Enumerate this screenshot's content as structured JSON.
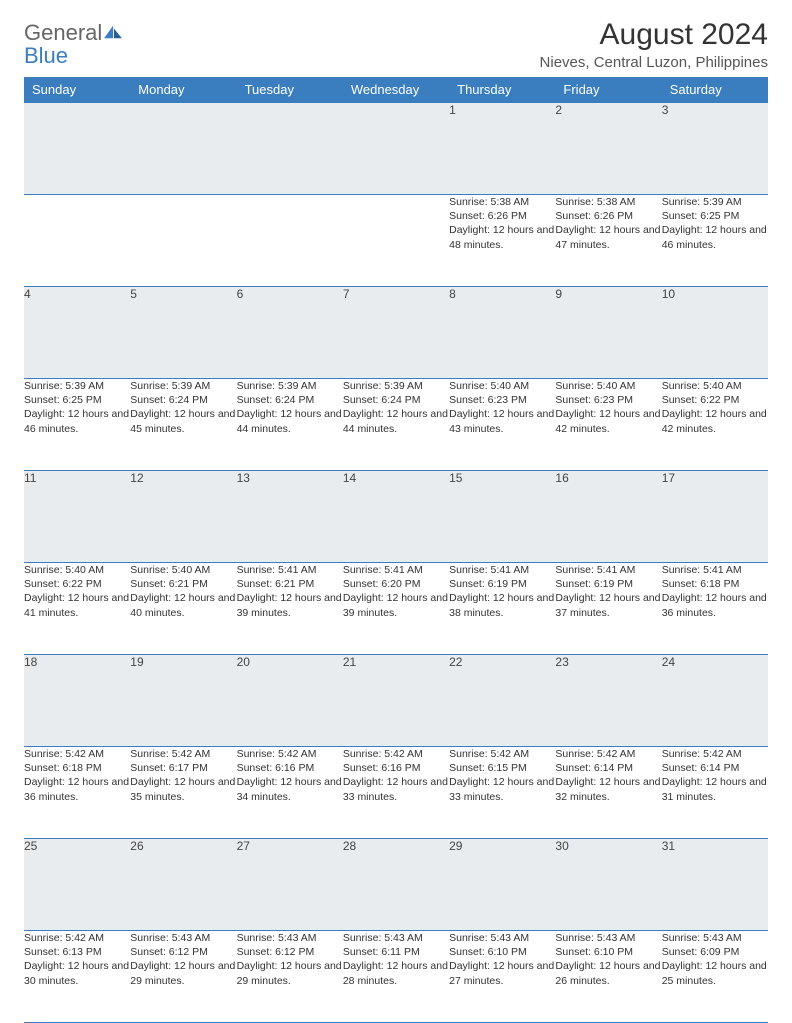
{
  "brand": {
    "part1": "General",
    "part2": "Blue"
  },
  "title": "August 2024",
  "location": "Nieves, Central Luzon, Philippines",
  "colors": {
    "accent": "#3a7ebf",
    "daynum_bg": "#e9ecef",
    "text": "#333333"
  },
  "weekdays": [
    "Sunday",
    "Monday",
    "Tuesday",
    "Wednesday",
    "Thursday",
    "Friday",
    "Saturday"
  ],
  "weeks": [
    [
      null,
      null,
      null,
      null,
      {
        "day": "1",
        "sunrise": "5:38 AM",
        "sunset": "6:26 PM",
        "daylight": "12 hours and 48 minutes."
      },
      {
        "day": "2",
        "sunrise": "5:38 AM",
        "sunset": "6:26 PM",
        "daylight": "12 hours and 47 minutes."
      },
      {
        "day": "3",
        "sunrise": "5:39 AM",
        "sunset": "6:25 PM",
        "daylight": "12 hours and 46 minutes."
      }
    ],
    [
      {
        "day": "4",
        "sunrise": "5:39 AM",
        "sunset": "6:25 PM",
        "daylight": "12 hours and 46 minutes."
      },
      {
        "day": "5",
        "sunrise": "5:39 AM",
        "sunset": "6:24 PM",
        "daylight": "12 hours and 45 minutes."
      },
      {
        "day": "6",
        "sunrise": "5:39 AM",
        "sunset": "6:24 PM",
        "daylight": "12 hours and 44 minutes."
      },
      {
        "day": "7",
        "sunrise": "5:39 AM",
        "sunset": "6:24 PM",
        "daylight": "12 hours and 44 minutes."
      },
      {
        "day": "8",
        "sunrise": "5:40 AM",
        "sunset": "6:23 PM",
        "daylight": "12 hours and 43 minutes."
      },
      {
        "day": "9",
        "sunrise": "5:40 AM",
        "sunset": "6:23 PM",
        "daylight": "12 hours and 42 minutes."
      },
      {
        "day": "10",
        "sunrise": "5:40 AM",
        "sunset": "6:22 PM",
        "daylight": "12 hours and 42 minutes."
      }
    ],
    [
      {
        "day": "11",
        "sunrise": "5:40 AM",
        "sunset": "6:22 PM",
        "daylight": "12 hours and 41 minutes."
      },
      {
        "day": "12",
        "sunrise": "5:40 AM",
        "sunset": "6:21 PM",
        "daylight": "12 hours and 40 minutes."
      },
      {
        "day": "13",
        "sunrise": "5:41 AM",
        "sunset": "6:21 PM",
        "daylight": "12 hours and 39 minutes."
      },
      {
        "day": "14",
        "sunrise": "5:41 AM",
        "sunset": "6:20 PM",
        "daylight": "12 hours and 39 minutes."
      },
      {
        "day": "15",
        "sunrise": "5:41 AM",
        "sunset": "6:19 PM",
        "daylight": "12 hours and 38 minutes."
      },
      {
        "day": "16",
        "sunrise": "5:41 AM",
        "sunset": "6:19 PM",
        "daylight": "12 hours and 37 minutes."
      },
      {
        "day": "17",
        "sunrise": "5:41 AM",
        "sunset": "6:18 PM",
        "daylight": "12 hours and 36 minutes."
      }
    ],
    [
      {
        "day": "18",
        "sunrise": "5:42 AM",
        "sunset": "6:18 PM",
        "daylight": "12 hours and 36 minutes."
      },
      {
        "day": "19",
        "sunrise": "5:42 AM",
        "sunset": "6:17 PM",
        "daylight": "12 hours and 35 minutes."
      },
      {
        "day": "20",
        "sunrise": "5:42 AM",
        "sunset": "6:16 PM",
        "daylight": "12 hours and 34 minutes."
      },
      {
        "day": "21",
        "sunrise": "5:42 AM",
        "sunset": "6:16 PM",
        "daylight": "12 hours and 33 minutes."
      },
      {
        "day": "22",
        "sunrise": "5:42 AM",
        "sunset": "6:15 PM",
        "daylight": "12 hours and 33 minutes."
      },
      {
        "day": "23",
        "sunrise": "5:42 AM",
        "sunset": "6:14 PM",
        "daylight": "12 hours and 32 minutes."
      },
      {
        "day": "24",
        "sunrise": "5:42 AM",
        "sunset": "6:14 PM",
        "daylight": "12 hours and 31 minutes."
      }
    ],
    [
      {
        "day": "25",
        "sunrise": "5:42 AM",
        "sunset": "6:13 PM",
        "daylight": "12 hours and 30 minutes."
      },
      {
        "day": "26",
        "sunrise": "5:43 AM",
        "sunset": "6:12 PM",
        "daylight": "12 hours and 29 minutes."
      },
      {
        "day": "27",
        "sunrise": "5:43 AM",
        "sunset": "6:12 PM",
        "daylight": "12 hours and 29 minutes."
      },
      {
        "day": "28",
        "sunrise": "5:43 AM",
        "sunset": "6:11 PM",
        "daylight": "12 hours and 28 minutes."
      },
      {
        "day": "29",
        "sunrise": "5:43 AM",
        "sunset": "6:10 PM",
        "daylight": "12 hours and 27 minutes."
      },
      {
        "day": "30",
        "sunrise": "5:43 AM",
        "sunset": "6:10 PM",
        "daylight": "12 hours and 26 minutes."
      },
      {
        "day": "31",
        "sunrise": "5:43 AM",
        "sunset": "6:09 PM",
        "daylight": "12 hours and 25 minutes."
      }
    ]
  ],
  "labels": {
    "sunrise": "Sunrise: ",
    "sunset": "Sunset: ",
    "daylight": "Daylight: "
  }
}
